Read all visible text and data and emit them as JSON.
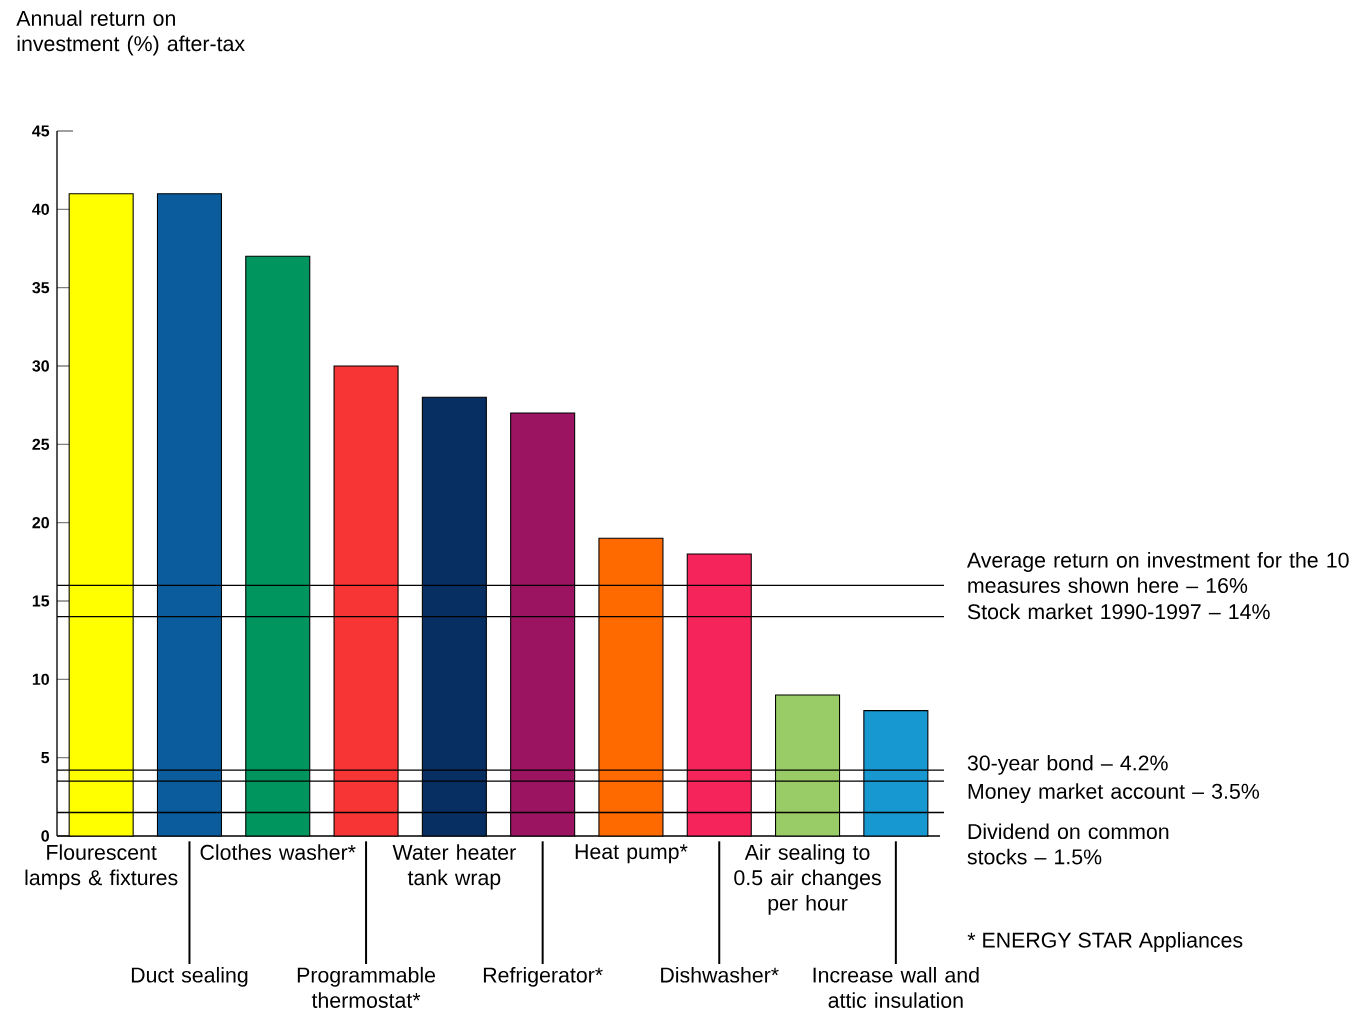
{
  "chart_data": {
    "type": "bar",
    "ylabel": "Annual return on investment (%) after-tax",
    "categories": [
      "Flourescent lamps & fixtures",
      "Duct sealing",
      "Clothes washer*",
      "Programmable thermostat*",
      "Water heater tank wrap",
      "Refrigerator*",
      "Heat pump*",
      "Dishwasher*",
      "Air sealing to 0.5 air changes per hour",
      "Increase wall and attic insulation"
    ],
    "values": [
      41,
      41,
      37,
      30,
      28,
      27,
      19,
      18,
      9,
      8
    ],
    "colors": [
      "#ffff00",
      "#0a5c9c",
      "#00955f",
      "#f73535",
      "#072f62",
      "#9a1461",
      "#ff6a00",
      "#f5245a",
      "#99cc66",
      "#1898d0"
    ],
    "ylim": [
      0,
      45
    ],
    "yticks": [
      0,
      5,
      10,
      15,
      20,
      25,
      30,
      35,
      40,
      45
    ],
    "grid": false,
    "ref_lines": [
      {
        "axis": "y",
        "value": 16,
        "label": "Average return on investment for the 10 measures shown here – 16%"
      },
      {
        "axis": "y",
        "value": 14,
        "label": "Stock market 1990-1997 – 14%"
      },
      {
        "axis": "y",
        "value": 4.2,
        "label": "30-year bond – 4.2%"
      },
      {
        "axis": "y",
        "value": 3.5,
        "label": "Money market account – 3.5%"
      },
      {
        "axis": "y",
        "value": 1.5,
        "label": "Dividend on common stocks – 1.5%"
      }
    ],
    "annotations": [
      "* ENERGY STAR Appliances"
    ]
  }
}
